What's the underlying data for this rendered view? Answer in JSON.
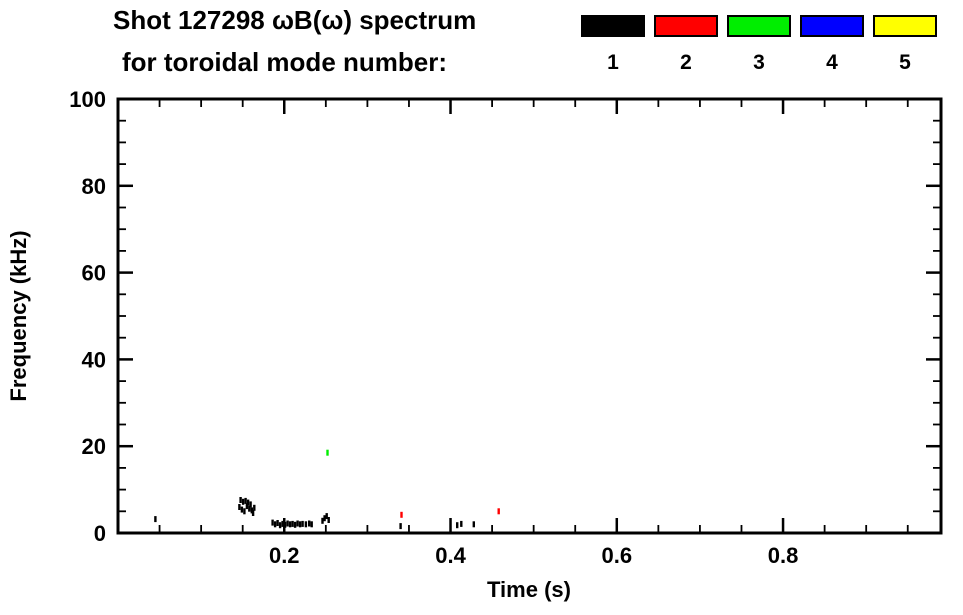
{
  "header": {
    "title": "Shot 127298 ωB(ω) spectrum",
    "subtitle": "for toroidal mode number:"
  },
  "legend": {
    "position": "top-right",
    "items": [
      {
        "label": "1",
        "color": "#000000"
      },
      {
        "label": "2",
        "color": "#ff0000"
      },
      {
        "label": "3",
        "color": "#00ee00"
      },
      {
        "label": "4",
        "color": "#0000ff"
      },
      {
        "label": "5",
        "color": "#ffff00"
      }
    ]
  },
  "chart_data": {
    "type": "scatter",
    "title": "Shot 127298 ωB(ω) spectrum for toroidal mode number: 1 2 3 4 5",
    "xlabel": "Time (s)",
    "ylabel": "Frequency (kHz)",
    "xlim": [
      0.0,
      0.99
    ],
    "ylim": [
      0,
      100
    ],
    "x_major_ticks": [
      0.2,
      0.4,
      0.6,
      0.8
    ],
    "x_minor_interval": 0.05,
    "y_major_ticks": [
      0,
      20,
      40,
      60,
      80,
      100
    ],
    "y_minor_interval": 5,
    "grid": false,
    "frame_color": "#000000",
    "background_color": "#ffffff",
    "series": [
      {
        "name": "mode 1",
        "color": "#000000",
        "points": [
          [
            0.045,
            3.2
          ],
          [
            0.146,
            6.0
          ],
          [
            0.1475,
            7.6
          ],
          [
            0.149,
            5.4
          ],
          [
            0.1505,
            7.2
          ],
          [
            0.152,
            5.0
          ],
          [
            0.1535,
            7.4
          ],
          [
            0.155,
            6.2
          ],
          [
            0.1565,
            7.0
          ],
          [
            0.158,
            5.6
          ],
          [
            0.1595,
            6.6
          ],
          [
            0.161,
            5.2
          ],
          [
            0.1625,
            4.6
          ],
          [
            0.164,
            5.8
          ],
          [
            0.186,
            2.4
          ],
          [
            0.189,
            2.0
          ],
          [
            0.192,
            2.3
          ],
          [
            0.195,
            1.8
          ],
          [
            0.198,
            2.1
          ],
          [
            0.201,
            1.9
          ],
          [
            0.204,
            2.2
          ],
          [
            0.207,
            2.0
          ],
          [
            0.21,
            2.1
          ],
          [
            0.213,
            1.9
          ],
          [
            0.216,
            2.2
          ],
          [
            0.219,
            2.0
          ],
          [
            0.222,
            2.1
          ],
          [
            0.226,
            2.0
          ],
          [
            0.23,
            2.2
          ],
          [
            0.233,
            2.0
          ],
          [
            0.246,
            2.8
          ],
          [
            0.2485,
            3.4
          ],
          [
            0.251,
            3.9
          ],
          [
            0.2535,
            3.0
          ],
          [
            0.34,
            1.6
          ],
          [
            0.408,
            1.8
          ],
          [
            0.413,
            2.1
          ],
          [
            0.428,
            2.0
          ]
        ]
      },
      {
        "name": "mode 2",
        "color": "#ff0000",
        "points": [
          [
            0.341,
            4.2
          ],
          [
            0.458,
            5.0
          ]
        ]
      },
      {
        "name": "mode 3",
        "color": "#00ee00",
        "points": [
          [
            0.252,
            18.5
          ]
        ]
      },
      {
        "name": "mode 4",
        "color": "#0000ff",
        "points": []
      },
      {
        "name": "mode 5",
        "color": "#ffff00",
        "points": []
      }
    ]
  }
}
